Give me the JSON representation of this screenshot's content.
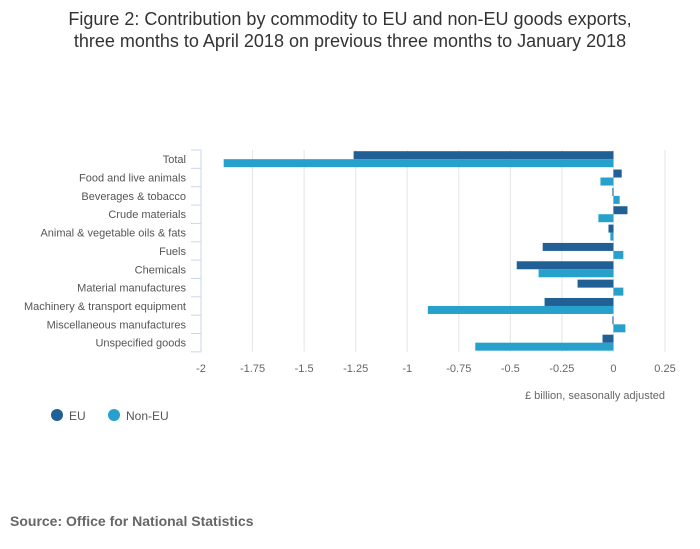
{
  "chart_data": {
    "type": "bar",
    "orientation": "horizontal",
    "title_line1": "Figure 2: Contribution by commodity to EU and non-EU goods exports,",
    "title_line2": "three months to April 2018 on previous three months to January 2018",
    "xlabel": "£ billion, seasonally adjusted",
    "ylabel": "",
    "xlim": [
      -2,
      0.25
    ],
    "xticks": [
      -2,
      -1.75,
      -1.5,
      -1.25,
      -1,
      -0.75,
      -0.5,
      -0.25,
      0,
      0.25
    ],
    "grid": true,
    "legend_position": "bottom-left",
    "categories": [
      "Total",
      "Food and live animals",
      "Beverages & tobacco",
      "Crude materials",
      "Animal & vegetable oils & fats",
      "Fuels",
      "Chemicals",
      "Material manufactures",
      "Machinery & transport equipment",
      "Miscellaneous manufactures",
      "Unspecified goods"
    ],
    "series": [
      {
        "name": "EU",
        "color": "#206095",
        "values": [
          -1.26,
          0.04,
          -0.005,
          0.068,
          -0.024,
          -0.343,
          -0.469,
          -0.174,
          -0.334,
          -0.005,
          -0.053
        ]
      },
      {
        "name": "Non-EU",
        "color": "#27a0cc",
        "values": [
          -1.89,
          -0.063,
          0.03,
          -0.073,
          -0.015,
          0.048,
          -0.363,
          0.048,
          -0.9,
          0.058,
          -0.67
        ]
      }
    ]
  },
  "source": "Source: Office for National Statistics"
}
